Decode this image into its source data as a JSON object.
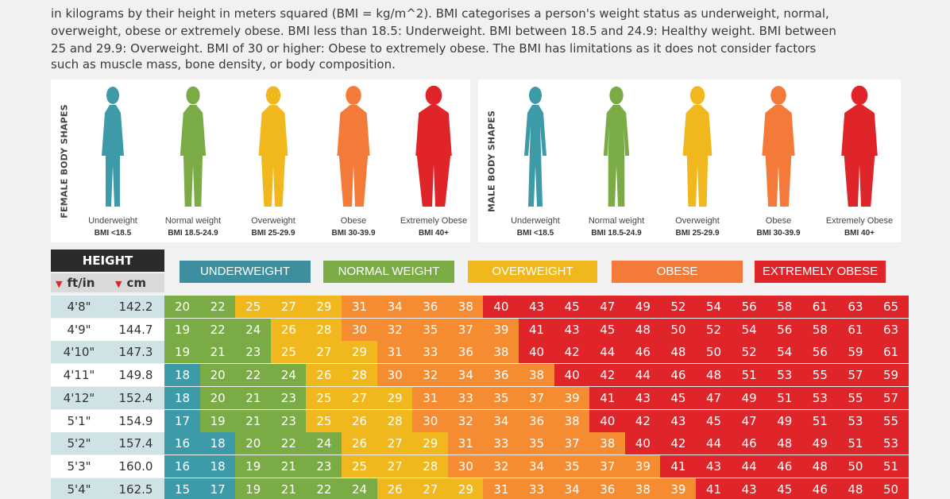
{
  "intro_lines": [
    "in kilograms by their height in meters squared (BMI = kg/m^2). BMI categorises a person's weight status as underweight, normal,",
    "overweight, obese or extremely obese. BMI less than 18.5: Underweight. BMI between 18.5 and 24.9: Healthy weight. BMI between",
    "25 and 29.9: Overweight. BMI of 30 or higher: Obese to extremely obese. The BMI has limitations as it does not consider factors",
    "such as muscle mass, bone density, or body composition."
  ],
  "female_panel": {
    "title": "FEMALE BODY SHAPES",
    "figures": [
      {
        "category": "Underweight",
        "range": "BMI <18.5",
        "color": "#3d9aa8"
      },
      {
        "category": "Normal weight",
        "range": "BMI 18.5-24.9",
        "color": "#7aab45"
      },
      {
        "category": "Overweight",
        "range": "BMI 25-29.9",
        "color": "#f0b81c"
      },
      {
        "category": "Obese",
        "range": "BMI 30-39.9",
        "color": "#f47a3a"
      },
      {
        "category": "Extremely Obese",
        "range": "BMI 40+",
        "color": "#e0252a"
      }
    ]
  },
  "male_panel": {
    "title": "MALE BODY SHAPES",
    "figures": [
      {
        "category": "Underweight",
        "range": "BMI <18.5",
        "color": "#3d9aa8"
      },
      {
        "category": "Normal weight",
        "range": "BMI 18.5-24.9",
        "color": "#7aab45"
      },
      {
        "category": "Overweight",
        "range": "BMI 25-29.9",
        "color": "#f0b81c"
      },
      {
        "category": "Obese",
        "range": "BMI 30-39.9",
        "color": "#f47a3a"
      },
      {
        "category": "Extremely Obese",
        "range": "BMI 40+",
        "color": "#e0252a"
      }
    ]
  },
  "table_header": {
    "height_label": "HEIGHT",
    "unit_ft": "ft/in",
    "unit_cm": "cm"
  },
  "categories": [
    {
      "label": "UNDERWEIGHT",
      "color": "#3d8fa0"
    },
    {
      "label": "NORMAL WEIGHT",
      "color": "#7aab45"
    },
    {
      "label": "OVERWEIGHT",
      "color": "#f0b81c"
    },
    {
      "label": "OBESE",
      "color": "#f47a3a"
    },
    {
      "label": "EXTREMELY OBESE",
      "color": "#e0252a"
    }
  ],
  "chart_data": {
    "type": "table",
    "title": "",
    "columns": [
      "HEIGHT ft/in",
      "HEIGHT cm",
      "BMI"
    ],
    "rows": [
      {
        "ft_in": "4'8\"",
        "cm": "142.2",
        "bmi": [
          20,
          22,
          25,
          27,
          29,
          31,
          34,
          36,
          38,
          40,
          43,
          45,
          47,
          49,
          52,
          54,
          56,
          58,
          61,
          63,
          65
        ]
      },
      {
        "ft_in": "4'9\"",
        "cm": "144.7",
        "bmi": [
          19,
          22,
          24,
          26,
          28,
          30,
          32,
          35,
          37,
          39,
          41,
          43,
          45,
          48,
          50,
          52,
          54,
          56,
          58,
          61,
          63
        ]
      },
      {
        "ft_in": "4'10\"",
        "cm": "147.3",
        "bmi": [
          19,
          21,
          23,
          25,
          27,
          29,
          31,
          33,
          36,
          38,
          40,
          42,
          44,
          46,
          48,
          50,
          52,
          54,
          56,
          59,
          61
        ]
      },
      {
        "ft_in": "4'11\"",
        "cm": "149.8",
        "bmi": [
          18,
          20,
          22,
          24,
          26,
          28,
          30,
          32,
          34,
          36,
          38,
          40,
          42,
          44,
          46,
          48,
          51,
          53,
          55,
          57,
          59
        ]
      },
      {
        "ft_in": "4'12\"",
        "cm": "152.4",
        "bmi": [
          18,
          20,
          21,
          23,
          25,
          27,
          29,
          31,
          33,
          35,
          37,
          39,
          41,
          43,
          45,
          47,
          49,
          51,
          53,
          55,
          57
        ]
      },
      {
        "ft_in": "5'1\"",
        "cm": "154.9",
        "bmi": [
          17,
          19,
          21,
          23,
          25,
          26,
          28,
          30,
          32,
          34,
          36,
          38,
          40,
          42,
          43,
          45,
          47,
          49,
          51,
          53,
          55
        ]
      },
      {
        "ft_in": "5'2\"",
        "cm": "157.4",
        "bmi": [
          16,
          18,
          20,
          22,
          24,
          26,
          27,
          29,
          31,
          33,
          35,
          37,
          38,
          40,
          42,
          44,
          46,
          48,
          49,
          51,
          53
        ]
      },
      {
        "ft_in": "5'3\"",
        "cm": "160.0",
        "bmi": [
          16,
          18,
          19,
          21,
          23,
          25,
          27,
          28,
          30,
          32,
          34,
          35,
          37,
          39,
          41,
          43,
          44,
          46,
          48,
          50,
          51
        ]
      },
      {
        "ft_in": "5'4\"",
        "cm": "162.5",
        "bmi": [
          15,
          17,
          19,
          21,
          22,
          24,
          26,
          27,
          29,
          31,
          33,
          34,
          36,
          38,
          39,
          41,
          43,
          45,
          46,
          48,
          50
        ]
      }
    ]
  }
}
